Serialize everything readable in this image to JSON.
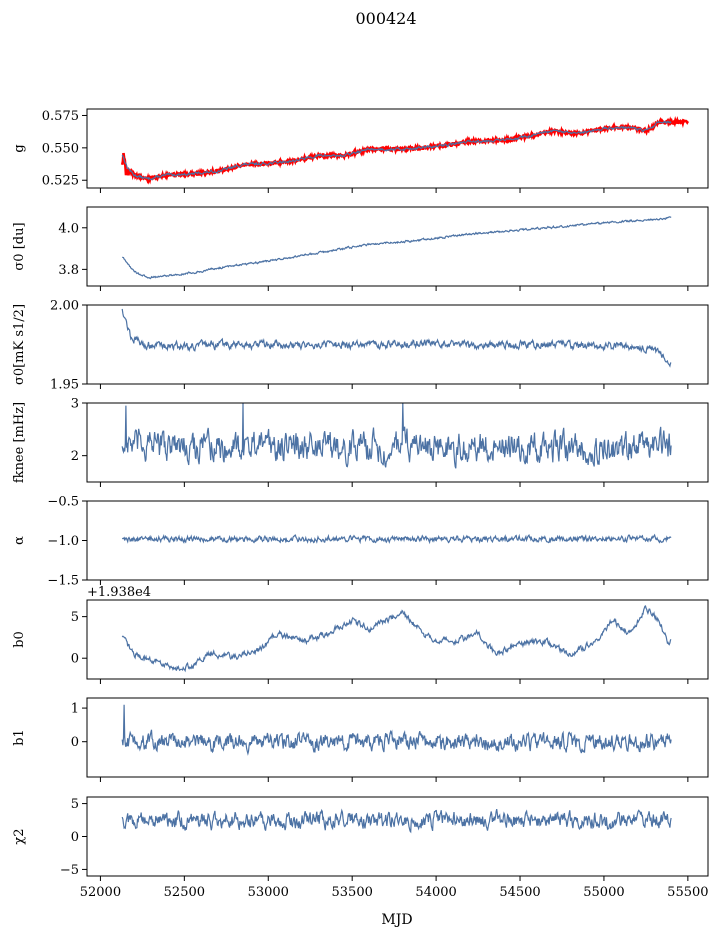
{
  "figure": {
    "title": "000424",
    "xlabel": "MJD"
  },
  "colors": {
    "series": "#4c72a4",
    "highlight": "#ff0000",
    "axis": "#000000"
  },
  "chart_data": [
    {
      "type": "line",
      "id": "g",
      "ylabel": "g",
      "xlim": [
        51920,
        55620
      ],
      "ylim": [
        0.519,
        0.58
      ],
      "yticks": [
        0.525,
        0.55,
        0.575
      ],
      "ytick_labels": [
        "0.525",
        "0.550",
        "0.575"
      ],
      "x_start": 52130,
      "x_end": 55400,
      "shape": [
        [
          52130,
          0.545
        ],
        [
          52160,
          0.535
        ],
        [
          52200,
          0.529
        ],
        [
          52280,
          0.526
        ],
        [
          52400,
          0.529
        ],
        [
          52550,
          0.53
        ],
        [
          52700,
          0.532
        ],
        [
          52850,
          0.537
        ],
        [
          53000,
          0.538
        ],
        [
          53150,
          0.54
        ],
        [
          53300,
          0.544
        ],
        [
          53450,
          0.544
        ],
        [
          53600,
          0.549
        ],
        [
          53800,
          0.549
        ],
        [
          54000,
          0.551
        ],
        [
          54200,
          0.555
        ],
        [
          54400,
          0.556
        ],
        [
          54550,
          0.559
        ],
        [
          54700,
          0.563
        ],
        [
          54850,
          0.561
        ],
        [
          55000,
          0.565
        ],
        [
          55150,
          0.566
        ],
        [
          55250,
          0.563
        ],
        [
          55330,
          0.57
        ],
        [
          55400,
          0.57
        ]
      ],
      "noise": 0.0008,
      "overlay": "highlight",
      "overlay_extent": [
        52130,
        55500
      ]
    },
    {
      "type": "line",
      "id": "sigma0_du",
      "ylabel": "σ0 [du]",
      "xlim": [
        51920,
        55620
      ],
      "ylim": [
        3.72,
        4.1
      ],
      "yticks": [
        3.8,
        4.0
      ],
      "ytick_labels": [
        "3.8",
        "4.0"
      ],
      "x_start": 52130,
      "x_end": 55400,
      "shape": [
        [
          52130,
          3.86
        ],
        [
          52200,
          3.79
        ],
        [
          52280,
          3.76
        ],
        [
          52400,
          3.77
        ],
        [
          52600,
          3.79
        ],
        [
          52800,
          3.82
        ],
        [
          53000,
          3.84
        ],
        [
          53300,
          3.88
        ],
        [
          53600,
          3.92
        ],
        [
          53900,
          3.94
        ],
        [
          54200,
          3.97
        ],
        [
          54500,
          3.99
        ],
        [
          54800,
          4.01
        ],
        [
          55100,
          4.03
        ],
        [
          55300,
          4.04
        ],
        [
          55400,
          4.05
        ]
      ],
      "noise": 0.004
    },
    {
      "type": "line",
      "id": "sigma0_mk",
      "ylabel": "σ0[mK s1/2]",
      "xlim": [
        51920,
        55620
      ],
      "ylim": [
        1.95,
        2.0
      ],
      "yticks": [
        1.95,
        2.0
      ],
      "ytick_labels": [
        "1.95",
        "2.00"
      ],
      "x_start": 52130,
      "x_end": 55400,
      "shape": [
        [
          52130,
          1.998
        ],
        [
          52180,
          1.98
        ],
        [
          52250,
          1.975
        ],
        [
          52500,
          1.974
        ],
        [
          52800,
          1.975
        ],
        [
          53100,
          1.975
        ],
        [
          53400,
          1.975
        ],
        [
          53700,
          1.975
        ],
        [
          54000,
          1.976
        ],
        [
          54300,
          1.975
        ],
        [
          54600,
          1.975
        ],
        [
          54900,
          1.974
        ],
        [
          55100,
          1.974
        ],
        [
          55250,
          1.973
        ],
        [
          55330,
          1.97
        ],
        [
          55400,
          1.962
        ]
      ],
      "noise": 0.002
    },
    {
      "type": "line",
      "id": "fknee",
      "ylabel": "fknee [mHz]",
      "xlim": [
        51920,
        55620
      ],
      "ylim": [
        1.5,
        3.0
      ],
      "yticks": [
        2,
        3
      ],
      "ytick_labels": [
        "2",
        "3"
      ],
      "x_start": 52130,
      "x_end": 55400,
      "shape": [
        [
          52130,
          2.2
        ],
        [
          55400,
          2.15
        ]
      ],
      "noise": 0.22,
      "spikes": [
        [
          52150,
          2.95
        ],
        [
          52850,
          3.0
        ],
        [
          53800,
          3.0
        ]
      ]
    },
    {
      "type": "line",
      "id": "alpha",
      "ylabel": "α",
      "xlim": [
        51920,
        55620
      ],
      "ylim": [
        -1.5,
        -0.5
      ],
      "yticks": [
        -1.5,
        -1.0,
        -0.5
      ],
      "ytick_labels": [
        "−1.5",
        "−1.0",
        "−0.5"
      ],
      "x_start": 52130,
      "x_end": 55400,
      "shape": [
        [
          52130,
          -0.98
        ],
        [
          55400,
          -0.98
        ]
      ],
      "noise": 0.03
    },
    {
      "type": "line",
      "id": "b0",
      "ylabel": "b0",
      "offset_label": "+1.938e4",
      "xlim": [
        51920,
        55620
      ],
      "ylim": [
        -2.5,
        7.0
      ],
      "yticks": [
        0,
        5
      ],
      "ytick_labels": [
        "0",
        "5"
      ],
      "x_start": 52130,
      "x_end": 55400,
      "shape": [
        [
          52130,
          2.5
        ],
        [
          52200,
          0.5
        ],
        [
          52300,
          -0.2
        ],
        [
          52450,
          -1.2
        ],
        [
          52550,
          -1.0
        ],
        [
          52650,
          0.5
        ],
        [
          52800,
          0.2
        ],
        [
          52950,
          1.0
        ],
        [
          53050,
          3.0
        ],
        [
          53200,
          2.0
        ],
        [
          53350,
          3.0
        ],
        [
          53500,
          4.5
        ],
        [
          53600,
          3.5
        ],
        [
          53800,
          5.5
        ],
        [
          53950,
          2.5
        ],
        [
          54100,
          2.0
        ],
        [
          54250,
          3.0
        ],
        [
          54350,
          0.5
        ],
        [
          54500,
          1.8
        ],
        [
          54650,
          2.0
        ],
        [
          54800,
          0.5
        ],
        [
          54950,
          2.0
        ],
        [
          55050,
          4.5
        ],
        [
          55150,
          3.0
        ],
        [
          55250,
          6.0
        ],
        [
          55330,
          4.5
        ],
        [
          55380,
          2.0
        ],
        [
          55400,
          2.0
        ]
      ],
      "noise": 0.3
    },
    {
      "type": "line",
      "id": "b1",
      "ylabel": "b1",
      "xlim": [
        51920,
        55620
      ],
      "ylim": [
        -1.05,
        1.3
      ],
      "yticks": [
        0,
        1
      ],
      "ytick_labels": [
        "0",
        "1"
      ],
      "x_start": 52130,
      "x_end": 55400,
      "shape": [
        [
          52130,
          0.0
        ],
        [
          55400,
          0.0
        ]
      ],
      "noise": 0.2,
      "spikes": [
        [
          52140,
          1.1
        ]
      ]
    },
    {
      "type": "line",
      "id": "chi2",
      "ylabel": "χ2",
      "xlim": [
        51920,
        55620
      ],
      "ylim": [
        -6.0,
        6.0
      ],
      "yticks": [
        -5,
        0,
        5
      ],
      "ytick_labels": [
        "−5",
        "0",
        "5"
      ],
      "x_start": 52130,
      "x_end": 55400,
      "shape": [
        [
          52130,
          2.5
        ],
        [
          55400,
          2.5
        ]
      ],
      "noise": 1.0
    }
  ],
  "xticks": [
    52000,
    52500,
    53000,
    53500,
    54000,
    54500,
    55000,
    55500
  ],
  "xtick_labels": [
    "52000",
    "52500",
    "53000",
    "53500",
    "54000",
    "54500",
    "55000",
    "55500"
  ]
}
